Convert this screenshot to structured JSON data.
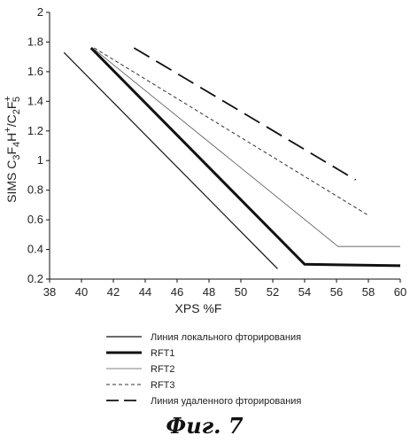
{
  "chart_data": {
    "type": "line",
    "title": "",
    "xlabel": "XPS %F",
    "ylabel_parts": [
      "SIMS C",
      "3",
      "F",
      "4",
      "H",
      "+",
      "/C",
      "2",
      "F",
      "+",
      "5"
    ],
    "xlim": [
      38,
      60
    ],
    "ylim": [
      0.2,
      2
    ],
    "x_ticks": [
      38,
      40,
      42,
      44,
      46,
      48,
      50,
      52,
      54,
      56,
      58,
      60
    ],
    "y_ticks": [
      0.2,
      0.4,
      0.6,
      0.8,
      1,
      1.2,
      1.4,
      1.6,
      1.8,
      2
    ],
    "grid": false,
    "legend_position": "bottom",
    "series": [
      {
        "name": "Линия локального фторирования",
        "style": "solid",
        "width": 1.2,
        "color": "#111111",
        "points": [
          [
            38.9,
            1.73
          ],
          [
            52.3,
            0.27
          ]
        ]
      },
      {
        "name": "RFT1",
        "style": "solid",
        "width": 3,
        "color": "#111111",
        "points": [
          [
            40.6,
            1.76
          ],
          [
            54.0,
            0.3
          ],
          [
            60.0,
            0.29
          ]
        ]
      },
      {
        "name": "RFT2",
        "style": "solid",
        "width": 0.8,
        "color": "#555555",
        "points": [
          [
            40.7,
            1.76
          ],
          [
            56.1,
            0.42
          ],
          [
            60.0,
            0.42
          ]
        ]
      },
      {
        "name": "RFT3",
        "style": "dotted",
        "width": 1,
        "color": "#333333",
        "points": [
          [
            40.8,
            1.76
          ],
          [
            58.0,
            0.63
          ]
        ]
      },
      {
        "name": "Линия удаленного фторирования",
        "style": "dashed",
        "width": 1.8,
        "color": "#111111",
        "points": [
          [
            43.3,
            1.76
          ],
          [
            57.2,
            0.87
          ]
        ]
      }
    ]
  },
  "caption": "Фиг. 7"
}
